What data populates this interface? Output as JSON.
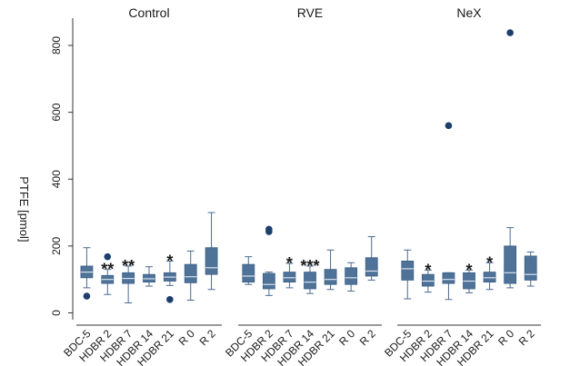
{
  "chart_data": {
    "type": "box",
    "ylabel": "PTFE [pmol]",
    "ylim": [
      0,
      870
    ],
    "yticks": [
      0,
      200,
      400,
      600,
      800
    ],
    "grid": false,
    "legend": "none",
    "box_color": "#4f7299",
    "outlier_color": "#1c3f6e",
    "categories": [
      "BDC-5",
      "HDBR 2",
      "HDBR 7",
      "HDBR 14",
      "HDBR 21",
      "R 0",
      "R 2"
    ],
    "panels": [
      {
        "title": "Control",
        "boxes": [
          {
            "category": "BDC-5",
            "whisker_low": 75,
            "q1": 105,
            "median": 122,
            "q3": 140,
            "whisker_high": 195,
            "outliers": [
              50
            ],
            "sig": ""
          },
          {
            "category": "HDBR 2",
            "whisker_low": 55,
            "q1": 88,
            "median": 100,
            "q3": 112,
            "whisker_high": 130,
            "outliers": [
              168
            ],
            "sig": "**"
          },
          {
            "category": "HDBR 7",
            "whisker_low": 30,
            "q1": 88,
            "median": 103,
            "q3": 120,
            "whisker_high": 140,
            "outliers": [],
            "sig": "**"
          },
          {
            "category": "HDBR 14",
            "whisker_low": 80,
            "q1": 92,
            "median": 102,
            "q3": 115,
            "whisker_high": 138,
            "outliers": [],
            "sig": ""
          },
          {
            "category": "HDBR 21",
            "whisker_low": 82,
            "q1": 95,
            "median": 107,
            "q3": 120,
            "whisker_high": 155,
            "outliers": [
              40
            ],
            "sig": "*"
          },
          {
            "category": "R 0",
            "whisker_low": 38,
            "q1": 90,
            "median": 108,
            "q3": 145,
            "whisker_high": 185,
            "outliers": [],
            "sig": ""
          },
          {
            "category": "R 2",
            "whisker_low": 70,
            "q1": 115,
            "median": 135,
            "q3": 195,
            "whisker_high": 300,
            "outliers": [],
            "sig": ""
          }
        ]
      },
      {
        "title": "RVE",
        "boxes": [
          {
            "category": "BDC-5",
            "whisker_low": 85,
            "q1": 92,
            "median": 110,
            "q3": 145,
            "whisker_high": 168,
            "outliers": [],
            "sig": ""
          },
          {
            "category": "HDBR 2",
            "whisker_low": 52,
            "q1": 72,
            "median": 85,
            "q3": 118,
            "whisker_high": 122,
            "outliers": [
              243,
              250
            ],
            "sig": ""
          },
          {
            "category": "HDBR 7",
            "whisker_low": 75,
            "q1": 92,
            "median": 105,
            "q3": 122,
            "whisker_high": 148,
            "outliers": [],
            "sig": "*"
          },
          {
            "category": "HDBR 14",
            "whisker_low": 58,
            "q1": 72,
            "median": 92,
            "q3": 122,
            "whisker_high": 140,
            "outliers": [],
            "sig": "***"
          },
          {
            "category": "HDBR 21",
            "whisker_low": 70,
            "q1": 85,
            "median": 100,
            "q3": 130,
            "whisker_high": 188,
            "outliers": [],
            "sig": ""
          },
          {
            "category": "R 0",
            "whisker_low": 65,
            "q1": 85,
            "median": 105,
            "q3": 135,
            "whisker_high": 150,
            "outliers": [],
            "sig": ""
          },
          {
            "category": "R 2",
            "whisker_low": 98,
            "q1": 110,
            "median": 125,
            "q3": 165,
            "whisker_high": 228,
            "outliers": [],
            "sig": ""
          }
        ]
      },
      {
        "title": "NeX",
        "boxes": [
          {
            "category": "BDC-5",
            "whisker_low": 42,
            "q1": 98,
            "median": 132,
            "q3": 155,
            "whisker_high": 188,
            "outliers": [],
            "sig": ""
          },
          {
            "category": "HDBR 2",
            "whisker_low": 62,
            "q1": 80,
            "median": 95,
            "q3": 115,
            "whisker_high": 128,
            "outliers": [],
            "sig": "*"
          },
          {
            "category": "HDBR 7",
            "whisker_low": 40,
            "q1": 88,
            "median": 100,
            "q3": 120,
            "whisker_high": 120,
            "outliers": [
              560
            ],
            "sig": ""
          },
          {
            "category": "HDBR 14",
            "whisker_low": 60,
            "q1": 72,
            "median": 95,
            "q3": 120,
            "whisker_high": 128,
            "outliers": [],
            "sig": "*"
          },
          {
            "category": "HDBR 21",
            "whisker_low": 70,
            "q1": 92,
            "median": 105,
            "q3": 122,
            "whisker_high": 150,
            "outliers": [],
            "sig": "*"
          },
          {
            "category": "R 0",
            "whisker_low": 75,
            "q1": 88,
            "median": 120,
            "q3": 200,
            "whisker_high": 255,
            "outliers": [
              838
            ],
            "sig": ""
          },
          {
            "category": "R 2",
            "whisker_low": 80,
            "q1": 98,
            "median": 115,
            "q3": 170,
            "whisker_high": 182,
            "outliers": [],
            "sig": ""
          }
        ]
      }
    ]
  }
}
